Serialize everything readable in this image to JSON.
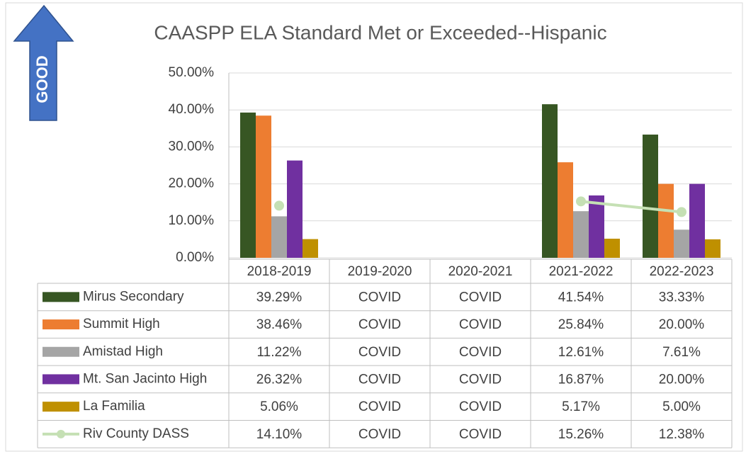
{
  "chart_data": {
    "type": "bar",
    "title": "CAASPP ELA Standard Met or Exceeded--Hispanic",
    "annotations": [
      "GOOD"
    ],
    "categories": [
      "2018-2019",
      "2019-2020",
      "2020-2021",
      "2021-2022",
      "2022-2023"
    ],
    "ylim": [
      0,
      50
    ],
    "yticks": [
      {
        "value": 0,
        "label": "0.00%"
      },
      {
        "value": 10,
        "label": "10.00%"
      },
      {
        "value": 20,
        "label": "20.00%"
      },
      {
        "value": 30,
        "label": "30.00%"
      },
      {
        "value": 40,
        "label": "40.00%"
      },
      {
        "value": 50,
        "label": "50.00%"
      }
    ],
    "grid": true,
    "series": [
      {
        "name": "Mirus Secondary",
        "type": "bar",
        "color": "#375623",
        "values": [
          39.29,
          null,
          null,
          41.54,
          33.33
        ],
        "value_labels": [
          "39.29%",
          "COVID",
          "COVID",
          "41.54%",
          "33.33%"
        ]
      },
      {
        "name": "Summit High",
        "type": "bar",
        "color": "#ed7d31",
        "values": [
          38.46,
          null,
          null,
          25.84,
          20.0
        ],
        "value_labels": [
          "38.46%",
          "COVID",
          "COVID",
          "25.84%",
          "20.00%"
        ]
      },
      {
        "name": "Amistad High",
        "type": "bar",
        "color": "#a5a5a5",
        "values": [
          11.22,
          null,
          null,
          12.61,
          7.61
        ],
        "value_labels": [
          "11.22%",
          "COVID",
          "COVID",
          "12.61%",
          "7.61%"
        ]
      },
      {
        "name": "Mt. San Jacinto High",
        "type": "bar",
        "color": "#7030a0",
        "values": [
          26.32,
          null,
          null,
          16.87,
          20.0
        ],
        "value_labels": [
          "26.32%",
          "COVID",
          "COVID",
          "16.87%",
          "20.00%"
        ]
      },
      {
        "name": "La Familia",
        "type": "bar",
        "color": "#bf9000",
        "values": [
          5.06,
          null,
          null,
          5.17,
          5.0
        ],
        "value_labels": [
          "5.06%",
          "COVID",
          "COVID",
          "5.17%",
          "5.00%"
        ]
      },
      {
        "name": "Riv  County DASS",
        "type": "line",
        "color": "#c5e0b4",
        "values": [
          14.1,
          null,
          null,
          15.26,
          12.38
        ],
        "value_labels": [
          "14.10%",
          "COVID",
          "COVID",
          "15.26%",
          "12.38%"
        ]
      }
    ]
  }
}
